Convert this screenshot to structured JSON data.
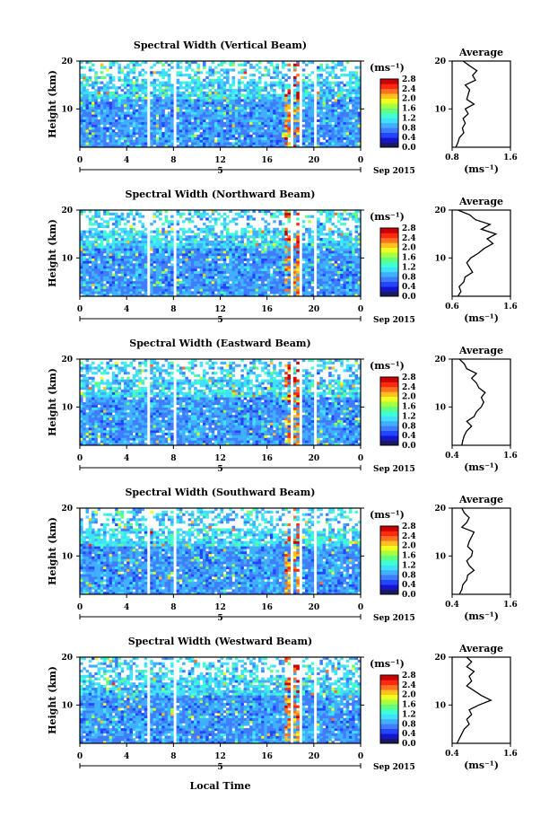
{
  "figure": {
    "date_label": "Sep 2015",
    "day_label": "5",
    "bottom_xlabel": "Local Time",
    "avg_title": "Average",
    "avg_xlabel": "(ms⁻¹)",
    "colorbar_unit": "(ms⁻¹)"
  },
  "colors": {
    "colormap": [
      "#1a1a60",
      "#1515d0",
      "#2246ff",
      "#3f7cff",
      "#3fb0ff",
      "#40e0ff",
      "#40ffd0",
      "#60ff80",
      "#a8ff40",
      "#f0ff20",
      "#ffc020",
      "#ff7020",
      "#ff2a10",
      "#cc0000"
    ]
  },
  "chart_data": [
    {
      "type": "heatmap",
      "title": "Spectral Width (Vertical Beam)",
      "ylabel": "Height (km)",
      "xlim": [
        0,
        24
      ],
      "ylim": [
        2,
        20
      ],
      "xticks": [
        "0",
        "4",
        "8",
        "12",
        "16",
        "20",
        "0"
      ],
      "yticks": [
        "10",
        "20"
      ],
      "colorbar": {
        "unit": "(ms⁻¹)",
        "range": [
          0.0,
          2.8
        ],
        "ticks": [
          "2.8",
          "2.4",
          "2.0",
          "1.6",
          "1.2",
          "0.8",
          "0.4",
          "0.0"
        ]
      },
      "data_gaps_hours": [
        [
          5.8,
          6.0
        ],
        [
          8.1,
          8.3
        ],
        [
          17.9,
          18.2
        ],
        [
          18.7,
          19.0
        ],
        [
          20.0,
          20.3
        ]
      ],
      "average": {
        "xlim": [
          0.8,
          1.6
        ],
        "xticks": [
          "0.8",
          "1.6"
        ],
        "yticks": [
          "10",
          "20"
        ],
        "height_km": [
          2,
          3,
          4,
          5,
          6,
          7,
          8,
          9,
          10,
          11,
          12,
          13,
          14,
          15,
          16,
          17,
          18,
          19,
          20
        ],
        "value": [
          0.85,
          0.88,
          0.9,
          0.96,
          0.94,
          0.98,
          0.95,
          1.02,
          0.98,
          1.1,
          1.0,
          1.02,
          1.04,
          0.98,
          1.12,
          1.08,
          1.14,
          1.04,
          0.95
        ]
      }
    },
    {
      "type": "heatmap",
      "title": "Spectral Width (Northward Beam)",
      "ylabel": "Height (km)",
      "xlim": [
        0,
        24
      ],
      "ylim": [
        2,
        20
      ],
      "xticks": [
        "0",
        "4",
        "8",
        "12",
        "16",
        "20",
        "0"
      ],
      "yticks": [
        "10",
        "20"
      ],
      "colorbar": {
        "unit": "(ms⁻¹)",
        "range": [
          0.0,
          2.8
        ],
        "ticks": [
          "2.8",
          "2.4",
          "2.0",
          "1.6",
          "1.2",
          "0.8",
          "0.4",
          "0.0"
        ]
      },
      "data_gaps_hours": [
        [
          5.8,
          6.0
        ],
        [
          8.1,
          8.3
        ],
        [
          17.9,
          18.2
        ],
        [
          18.7,
          19.0
        ],
        [
          20.0,
          20.3
        ]
      ],
      "average": {
        "xlim": [
          0.6,
          1.6
        ],
        "xticks": [
          "0.6",
          "1.6"
        ],
        "yticks": [
          "10",
          "20"
        ],
        "height_km": [
          2,
          3,
          4,
          5,
          6,
          7,
          8,
          9,
          10,
          11,
          12,
          13,
          14,
          15,
          16,
          17,
          18,
          19,
          20
        ],
        "value": [
          0.7,
          0.75,
          0.72,
          0.8,
          0.82,
          0.95,
          0.9,
          0.85,
          0.92,
          1.05,
          1.15,
          1.3,
          1.2,
          1.35,
          1.1,
          1.25,
          1.0,
          0.9,
          0.7
        ]
      }
    },
    {
      "type": "heatmap",
      "title": "Spectral Width (Eastward Beam)",
      "ylabel": "Height (km)",
      "xlim": [
        0,
        24
      ],
      "ylim": [
        2,
        20
      ],
      "xticks": [
        "0",
        "4",
        "8",
        "12",
        "16",
        "20",
        "0"
      ],
      "yticks": [
        "10",
        "20"
      ],
      "colorbar": {
        "unit": "(ms⁻¹)",
        "range": [
          0.0,
          2.8
        ],
        "ticks": [
          "2.8",
          "2.4",
          "2.0",
          "1.6",
          "1.2",
          "0.8",
          "0.4",
          "0.0"
        ]
      },
      "data_gaps_hours": [
        [
          5.8,
          6.0
        ],
        [
          8.1,
          8.3
        ],
        [
          17.9,
          18.2
        ],
        [
          18.7,
          19.0
        ],
        [
          20.0,
          20.3
        ]
      ],
      "average": {
        "xlim": [
          0.4,
          1.6
        ],
        "xticks": [
          "0.4",
          "1.6"
        ],
        "yticks": [
          "10",
          "20"
        ],
        "height_km": [
          2,
          3,
          4,
          5,
          6,
          7,
          8,
          9,
          10,
          11,
          12,
          13,
          14,
          15,
          16,
          17,
          18,
          19,
          20
        ],
        "value": [
          0.6,
          0.62,
          0.65,
          0.7,
          0.8,
          0.7,
          0.85,
          0.9,
          1.0,
          1.05,
          1.0,
          1.08,
          0.95,
          0.9,
          0.8,
          0.9,
          0.7,
          0.65,
          0.55
        ]
      }
    },
    {
      "type": "heatmap",
      "title": "Spectral Width (Southward Beam)",
      "ylabel": "Height (km)",
      "xlim": [
        0,
        24
      ],
      "ylim": [
        2,
        20
      ],
      "xticks": [
        "0",
        "4",
        "8",
        "12",
        "16",
        "20",
        "0"
      ],
      "yticks": [
        "10",
        "20"
      ],
      "colorbar": {
        "unit": "(ms⁻¹)",
        "range": [
          0.0,
          2.8
        ],
        "ticks": [
          "2.8",
          "2.4",
          "2.0",
          "1.6",
          "1.2",
          "0.8",
          "0.4",
          "0.0"
        ]
      },
      "data_gaps_hours": [
        [
          5.8,
          6.0
        ],
        [
          8.1,
          8.3
        ],
        [
          17.9,
          18.2
        ],
        [
          18.7,
          19.0
        ],
        [
          20.0,
          20.3
        ]
      ],
      "average": {
        "xlim": [
          0.4,
          1.6
        ],
        "xticks": [
          "0.4",
          "1.6"
        ],
        "yticks": [
          "10",
          "20"
        ],
        "height_km": [
          2,
          3,
          4,
          5,
          6,
          7,
          8,
          9,
          10,
          11,
          12,
          13,
          14,
          15,
          16,
          17,
          18,
          19,
          20
        ],
        "value": [
          0.55,
          0.6,
          0.62,
          0.7,
          0.72,
          0.85,
          0.75,
          0.7,
          0.8,
          0.82,
          0.72,
          0.75,
          0.8,
          0.85,
          0.6,
          0.7,
          0.75,
          0.65,
          0.6
        ]
      }
    },
    {
      "type": "heatmap",
      "title": "Spectral Width (Westward Beam)",
      "ylabel": "Height (km)",
      "xlim": [
        0,
        24
      ],
      "ylim": [
        2,
        20
      ],
      "xticks": [
        "0",
        "4",
        "8",
        "12",
        "16",
        "20",
        "0"
      ],
      "yticks": [
        "10",
        "20"
      ],
      "colorbar": {
        "unit": "(ms⁻¹)",
        "range": [
          0.0,
          2.8
        ],
        "ticks": [
          "2.8",
          "2.4",
          "2.0",
          "1.6",
          "1.2",
          "0.8",
          "0.4",
          "0.0"
        ]
      },
      "data_gaps_hours": [
        [
          5.8,
          6.0
        ],
        [
          8.1,
          8.3
        ],
        [
          17.9,
          18.2
        ],
        [
          18.7,
          19.0
        ],
        [
          20.0,
          20.3
        ]
      ],
      "average": {
        "xlim": [
          0.4,
          1.6
        ],
        "xticks": [
          "0.4",
          "1.6"
        ],
        "yticks": [
          "10",
          "20"
        ],
        "height_km": [
          2,
          3,
          4,
          5,
          6,
          7,
          8,
          9,
          10,
          11,
          12,
          13,
          14,
          15,
          16,
          17,
          18,
          19,
          20
        ],
        "value": [
          0.5,
          0.55,
          0.6,
          0.65,
          0.75,
          0.7,
          0.8,
          0.75,
          0.95,
          1.2,
          1.0,
          0.85,
          0.7,
          0.8,
          0.75,
          0.85,
          0.7,
          0.8,
          0.7
        ]
      }
    }
  ]
}
